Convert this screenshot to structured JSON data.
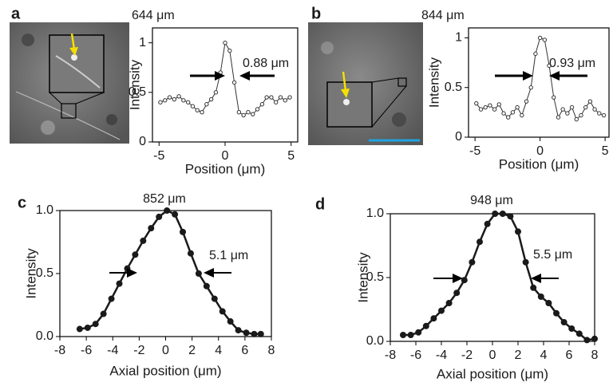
{
  "chart_data": [
    {
      "type": "line",
      "panel_label": "a",
      "title": "644 μm",
      "annotation": "0.88 μm",
      "marker": "open",
      "color": "#333333",
      "x_label": "Position (μm)",
      "y_label": "Intensity",
      "x": [
        -4.9,
        -4.55,
        -4.2,
        -3.85,
        -3.5,
        -3.15,
        -2.8,
        -2.45,
        -2.1,
        -1.75,
        -1.4,
        -1.05,
        -0.7,
        -0.35,
        0,
        0.35,
        0.7,
        1.05,
        1.4,
        1.75,
        2.1,
        2.45,
        2.8,
        3.15,
        3.5,
        3.85,
        4.2,
        4.55,
        4.9
      ],
      "values": [
        0.4,
        0.42,
        0.45,
        0.43,
        0.46,
        0.42,
        0.4,
        0.36,
        0.32,
        0.3,
        0.38,
        0.43,
        0.5,
        0.7,
        1.0,
        0.92,
        0.6,
        0.3,
        0.27,
        0.3,
        0.28,
        0.33,
        0.38,
        0.45,
        0.45,
        0.4,
        0.45,
        0.42,
        0.45
      ],
      "xlim": [
        -5.5,
        5.5
      ],
      "ylim": [
        0,
        1.15
      ],
      "xticks": [
        -5,
        0,
        5
      ],
      "yticks": [
        0,
        0.5,
        1
      ]
    },
    {
      "type": "line",
      "panel_label": "b",
      "title": "844 μm",
      "annotation": "0.93 μm",
      "marker": "open",
      "color": "#333333",
      "x_label": "Position (μm)",
      "y_label": "Intensity",
      "x": [
        -4.9,
        -4.55,
        -4.2,
        -3.85,
        -3.5,
        -3.15,
        -2.8,
        -2.45,
        -2.1,
        -1.75,
        -1.4,
        -1.05,
        -0.7,
        -0.35,
        0,
        0.35,
        0.7,
        1.05,
        1.4,
        1.75,
        2.1,
        2.45,
        2.8,
        3.15,
        3.5,
        3.85,
        4.2,
        4.55,
        4.9
      ],
      "values": [
        0.34,
        0.28,
        0.3,
        0.32,
        0.28,
        0.33,
        0.24,
        0.2,
        0.25,
        0.3,
        0.22,
        0.36,
        0.5,
        0.84,
        1.0,
        0.98,
        0.72,
        0.4,
        0.2,
        0.28,
        0.24,
        0.3,
        0.18,
        0.22,
        0.3,
        0.36,
        0.28,
        0.24,
        0.22
      ],
      "xlim": [
        -5.5,
        5.3
      ],
      "ylim": [
        0,
        1.1
      ],
      "xticks": [
        -5,
        0,
        5
      ],
      "yticks": [
        0,
        0.5,
        1
      ]
    },
    {
      "type": "line",
      "panel_label": "c",
      "title": "852 μm",
      "annotation": "5.1 μm",
      "marker": "filled",
      "color": "#1a1a1a",
      "x_label": "Axial position (μm)",
      "y_label": "Intensity",
      "x": [
        -6.5,
        -5.9,
        -5.3,
        -4.7,
        -4.1,
        -3.5,
        -2.9,
        -2.3,
        -1.7,
        -1.1,
        -0.5,
        0.1,
        0.7,
        1.3,
        1.9,
        2.5,
        3.1,
        3.7,
        4.3,
        4.9,
        5.5,
        6.1,
        6.7,
        7.2
      ],
      "values": [
        0.06,
        0.07,
        0.1,
        0.18,
        0.3,
        0.42,
        0.54,
        0.65,
        0.76,
        0.86,
        0.95,
        1.0,
        0.97,
        0.83,
        0.66,
        0.5,
        0.4,
        0.3,
        0.2,
        0.12,
        0.05,
        0.03,
        0.02,
        0.02
      ],
      "xlim": [
        -8,
        8
      ],
      "ylim": [
        0,
        1.0
      ],
      "xticks": [
        -8,
        -6,
        -4,
        -2,
        0,
        2,
        4,
        6,
        8
      ],
      "yticks": [
        {
          "value": 0,
          "label": "0.0"
        },
        {
          "value": 0.5,
          "label": "0.5"
        },
        {
          "value": 1,
          "label": "1.0"
        }
      ]
    },
    {
      "type": "line",
      "panel_label": "d",
      "title": "948 μm",
      "annotation": "5.5 μm",
      "marker": "filled",
      "color": "#1a1a1a",
      "x_label": "Axial position (μm)",
      "y_label": "Intensity",
      "x": [
        -7,
        -6.4,
        -5.8,
        -5.2,
        -4.6,
        -4,
        -3.4,
        -2.8,
        -2.2,
        -1.6,
        -1,
        -0.4,
        0.2,
        0.8,
        1.4,
        2,
        2.6,
        3.2,
        3.8,
        4.4,
        5,
        5.6,
        6.2,
        6.8,
        7.4,
        8
      ],
      "values": [
        0.05,
        0.05,
        0.07,
        0.12,
        0.18,
        0.24,
        0.3,
        0.38,
        0.48,
        0.62,
        0.78,
        0.92,
        1.0,
        1.0,
        0.98,
        0.86,
        0.62,
        0.42,
        0.35,
        0.3,
        0.22,
        0.15,
        0.1,
        0.06,
        0.01,
        0.02
      ],
      "xlim": [
        -8,
        8
      ],
      "ylim": [
        0,
        1.0
      ],
      "xticks": [
        -8,
        -6,
        -4,
        -2,
        0,
        2,
        4,
        6,
        8
      ],
      "yticks": [
        {
          "value": 0,
          "label": "0.0"
        },
        {
          "value": 0.5,
          "label": "0.5"
        },
        {
          "value": 1,
          "label": "1.0"
        }
      ]
    }
  ]
}
